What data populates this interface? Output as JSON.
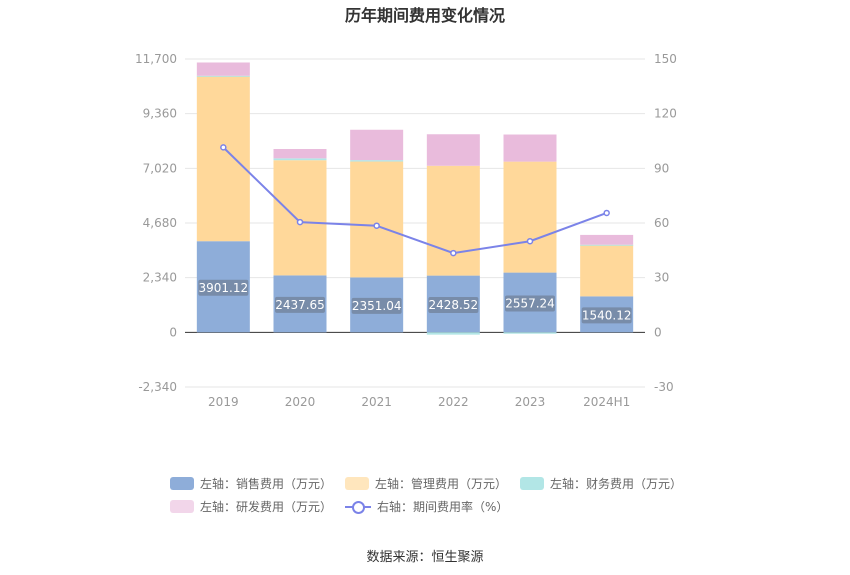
{
  "chart_data": {
    "type": "bar",
    "title": "历年期间费用变化情况",
    "categories": [
      "2019",
      "2020",
      "2021",
      "2022",
      "2023",
      "2024H1"
    ],
    "left_axis": {
      "ticks": [
        "11,700",
        "9,360",
        "7,020",
        "4,680",
        "2,340",
        "0",
        "-2,340"
      ],
      "range": [
        -2340,
        11700
      ]
    },
    "right_axis": {
      "ticks": [
        "150",
        "120",
        "90",
        "60",
        "30",
        "0",
        "-30"
      ],
      "range": [
        -30,
        150
      ]
    },
    "stacked_series": [
      {
        "name": "左轴：销售费用（万元）",
        "color": "#8eadd9",
        "values": [
          3901.12,
          2437.65,
          2351.04,
          2428.52,
          2557.24,
          1540.12
        ],
        "labels": [
          "3901.12",
          "2437.65",
          "2351.04",
          "2428.52",
          "2557.24",
          "1540.12"
        ]
      },
      {
        "name": "左轴：管理费用（万元）",
        "color": "#ffd89a",
        "values": [
          7050,
          4930,
          4960,
          4700,
          4750,
          2200
        ]
      },
      {
        "name": "左轴：财务费用（万元）",
        "color": "#b2e6e6",
        "values": [
          30,
          80,
          60,
          -100,
          -60,
          10
        ]
      },
      {
        "name": "左轴：研发费用（万元）",
        "color": "#e9bbdc",
        "values": [
          570,
          400,
          1300,
          1350,
          1160,
          420
        ]
      }
    ],
    "line_series": {
      "name": "右轴：期间费用率（%）",
      "color": "#7b83e8",
      "values": [
        101.5,
        60.5,
        58.5,
        43.5,
        50,
        65.5
      ]
    },
    "grid": true,
    "legend_position": "bottom"
  },
  "source": "数据来源：恒生聚源"
}
